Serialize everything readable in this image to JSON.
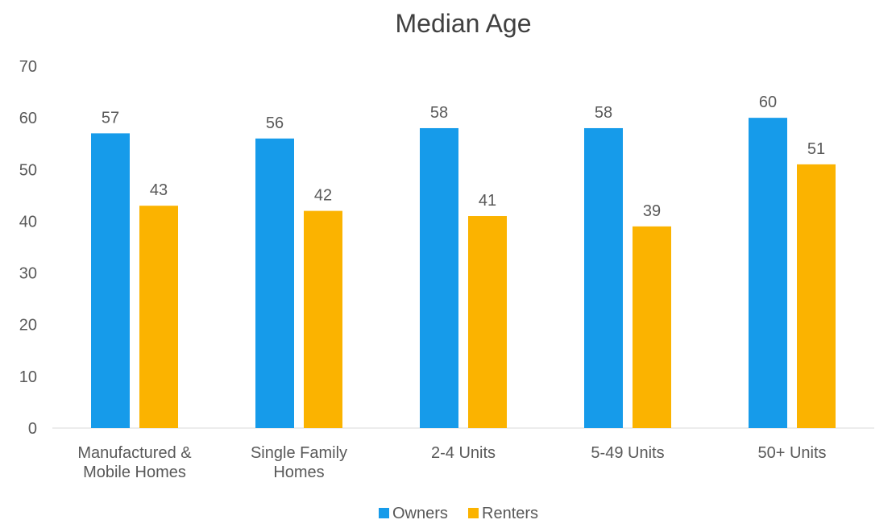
{
  "chart_data": {
    "type": "bar",
    "title": "Median Age",
    "categories": [
      [
        "Manufactured &",
        "Mobile Homes"
      ],
      [
        "Single Family",
        "Homes"
      ],
      [
        "2-4 Units"
      ],
      [
        "5-49 Units"
      ],
      [
        "50+ Units"
      ]
    ],
    "series": [
      {
        "name": "Owners",
        "color": "#169BEA",
        "values": [
          57,
          56,
          58,
          58,
          60
        ]
      },
      {
        "name": "Renters",
        "color": "#FBB300",
        "values": [
          43,
          42,
          41,
          39,
          51
        ]
      }
    ],
    "ylim": [
      0,
      70
    ],
    "yticks": [
      0,
      10,
      20,
      30,
      40,
      50,
      60,
      70
    ],
    "data_labels": true,
    "grid": false,
    "legend": "bottom"
  }
}
